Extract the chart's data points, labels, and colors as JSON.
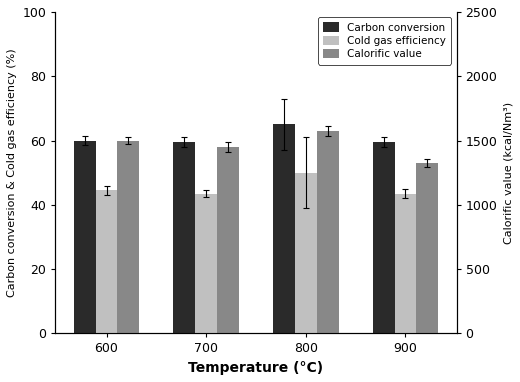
{
  "temperatures": [
    600,
    700,
    800,
    900
  ],
  "carbon_conversion": [
    60.0,
    59.5,
    65.0,
    59.5
  ],
  "carbon_conversion_err": [
    1.5,
    1.5,
    8.0,
    1.5
  ],
  "cold_gas_efficiency": [
    44.5,
    43.5,
    50.0,
    43.5
  ],
  "cold_gas_efficiency_err": [
    1.5,
    1.2,
    11.0,
    1.5
  ],
  "calorific_value": [
    60.0,
    58.0,
    63.0,
    53.0
  ],
  "calorific_value_err": [
    1.2,
    1.5,
    1.5,
    1.2
  ],
  "color_carbon": "#2a2a2a",
  "color_cold_gas": "#c0c0c0",
  "color_calorific": "#888888",
  "ylabel_left": "Carbon conversion & Cold gas efficiency (%)",
  "ylabel_right": "Calorific value (kcal/Nm³)",
  "xlabel": "Temperature (°C)",
  "ylim_left": [
    0,
    100
  ],
  "ylim_right": [
    0,
    2500
  ],
  "legend_labels": [
    "Carbon conversion",
    "Cold gas efficiency",
    "Calorific value"
  ],
  "bar_width": 0.22,
  "yticks_left": [
    0,
    20,
    40,
    60,
    80,
    100
  ],
  "yticks_right": [
    0,
    500,
    1000,
    1500,
    2000,
    2500
  ]
}
